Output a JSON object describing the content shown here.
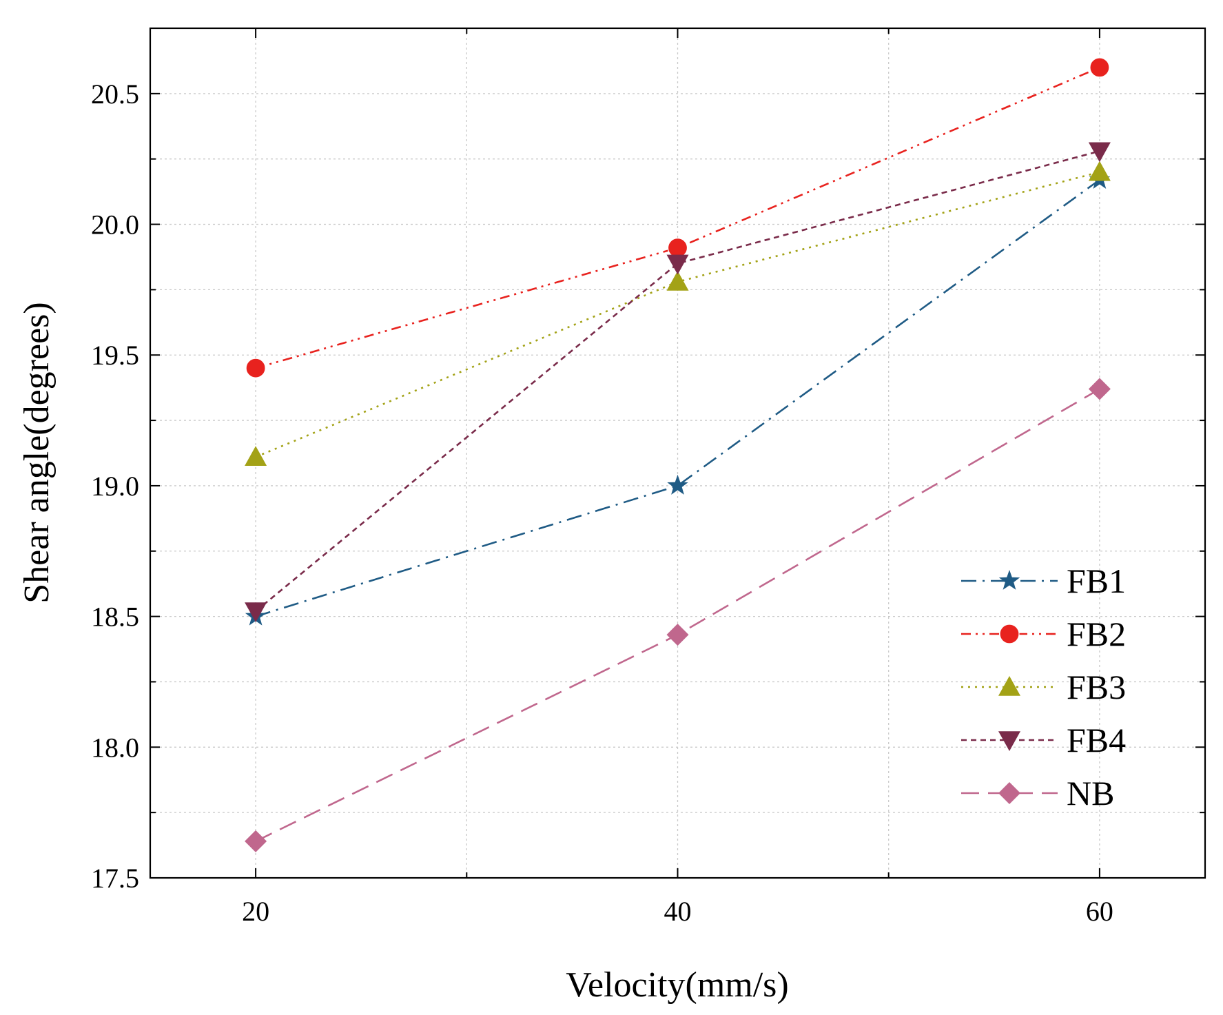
{
  "chart_data": {
    "type": "line",
    "xlabel": "Velocity(mm/s)",
    "ylabel": "Shear angle(degrees)",
    "xlim": [
      15,
      65
    ],
    "ylim": [
      17.5,
      20.75
    ],
    "x": [
      20,
      40,
      60
    ],
    "x_ticks": [
      "20",
      "40",
      "60"
    ],
    "y_ticks": [
      "17.5",
      "18.0",
      "18.5",
      "19.0",
      "19.5",
      "20.0",
      "20.5"
    ],
    "grid": true,
    "legend_position": "bottom-right",
    "series": [
      {
        "name": "FB1",
        "values": [
          18.5,
          19.0,
          20.17
        ],
        "color": "#1f5b85",
        "marker": "star",
        "line": "dash-dot"
      },
      {
        "name": "FB2",
        "values": [
          19.45,
          19.91,
          20.6
        ],
        "color": "#e8221e",
        "marker": "circle",
        "line": "dash-dot-dot"
      },
      {
        "name": "FB3",
        "values": [
          19.11,
          19.78,
          20.2
        ],
        "color": "#a3a216",
        "marker": "triangle-up",
        "line": "dotted"
      },
      {
        "name": "FB4",
        "values": [
          18.52,
          19.85,
          20.28
        ],
        "color": "#7a2b4a",
        "marker": "triangle-down",
        "line": "short-dash"
      },
      {
        "name": "NB",
        "values": [
          17.64,
          18.43,
          19.37
        ],
        "color": "#c0678d",
        "marker": "diamond",
        "line": "long-dash"
      }
    ]
  }
}
